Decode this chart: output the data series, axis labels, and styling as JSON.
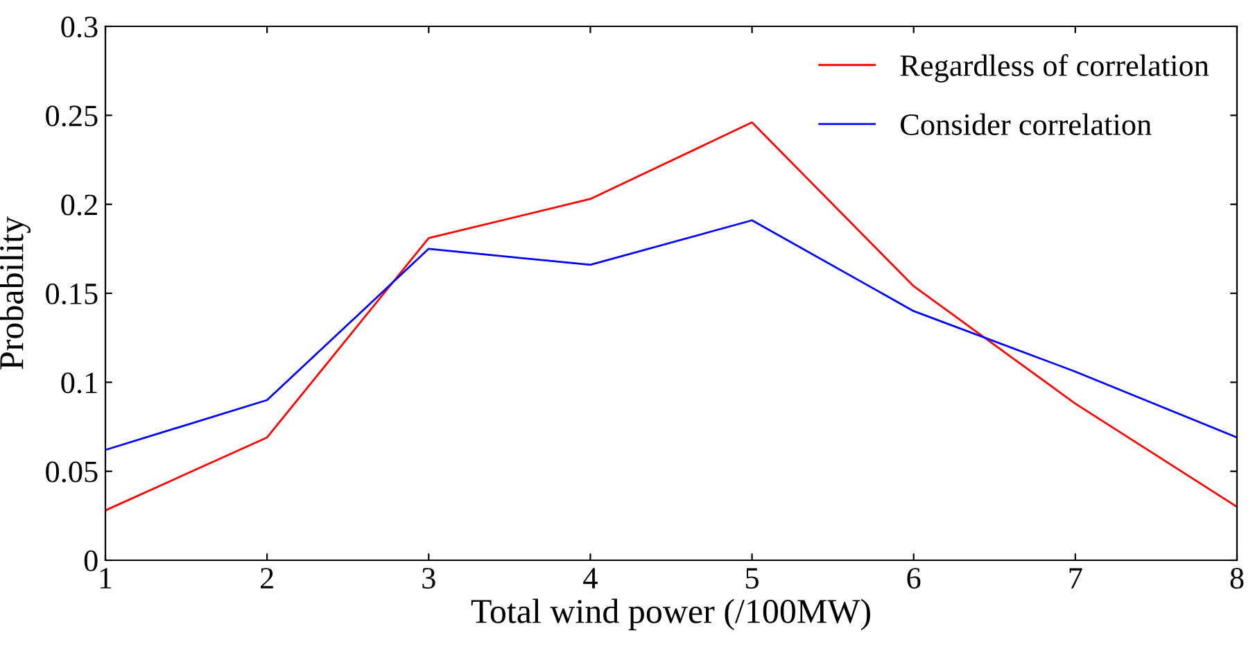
{
  "chart_data": {
    "type": "line",
    "xlabel": "Total wind power (/100MW)",
    "ylabel": "Probability",
    "x": [
      1,
      2,
      3,
      4,
      5,
      6,
      7,
      8
    ],
    "series": [
      {
        "name": "Regardless of correlation",
        "color": "#ff0000",
        "values": [
          0.028,
          0.069,
          0.181,
          0.203,
          0.246,
          0.154,
          0.088,
          0.03
        ]
      },
      {
        "name": "Consider correlation",
        "color": "#0000ff",
        "values": [
          0.062,
          0.09,
          0.175,
          0.166,
          0.191,
          0.14,
          0.106,
          0.069
        ]
      }
    ],
    "xlim": [
      1,
      8
    ],
    "xticks": [
      1,
      2,
      3,
      4,
      5,
      6,
      7,
      8
    ],
    "ylim": [
      0,
      0.3
    ],
    "yticks": [
      0,
      0.05,
      0.1,
      0.15,
      0.2,
      0.25,
      0.3
    ],
    "grid": false,
    "legend": "top right"
  }
}
